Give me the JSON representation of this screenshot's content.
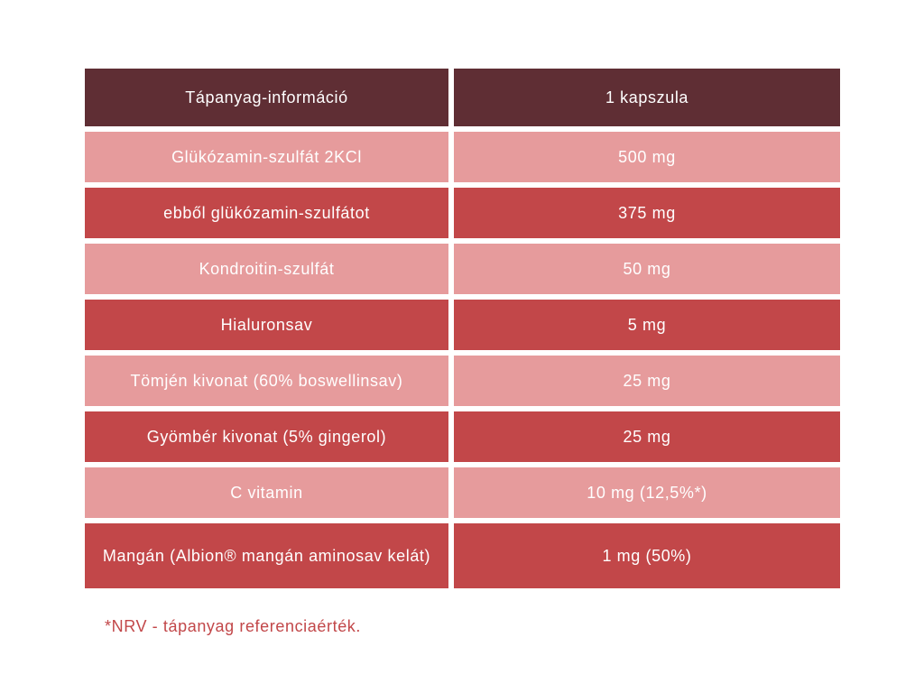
{
  "colors": {
    "header_bg": "#5f2e34",
    "light_row_bg": "#e69b9c",
    "dark_row_bg": "#c24749",
    "text": "#ffffff",
    "footnote": "#c24749"
  },
  "table": {
    "header": {
      "name": "Tápanyag-információ",
      "value": "1 kapszula"
    },
    "rows": [
      {
        "name": "Glükózamin-szulfát 2KCl",
        "value": "500 mg"
      },
      {
        "name": "ebből glükózamin-szulfátot",
        "value": "375 mg"
      },
      {
        "name": "Kondroitin-szulfát",
        "value": "50 mg"
      },
      {
        "name": "Hialuronsav",
        "value": "5 mg"
      },
      {
        "name": "Tömjén kivonat (60% boswellinsav)",
        "value": "25 mg"
      },
      {
        "name": "Gyömbér kivonat (5% gingerol)",
        "value": "25 mg"
      },
      {
        "name": "C vitamin",
        "value": "10 mg (12,5%*)"
      },
      {
        "name": "Mangán (Albion® mangán aminosav kelát)",
        "value": "1 mg (50%)"
      }
    ]
  },
  "footnote": "*NRV - tápanyag referenciaérték."
}
